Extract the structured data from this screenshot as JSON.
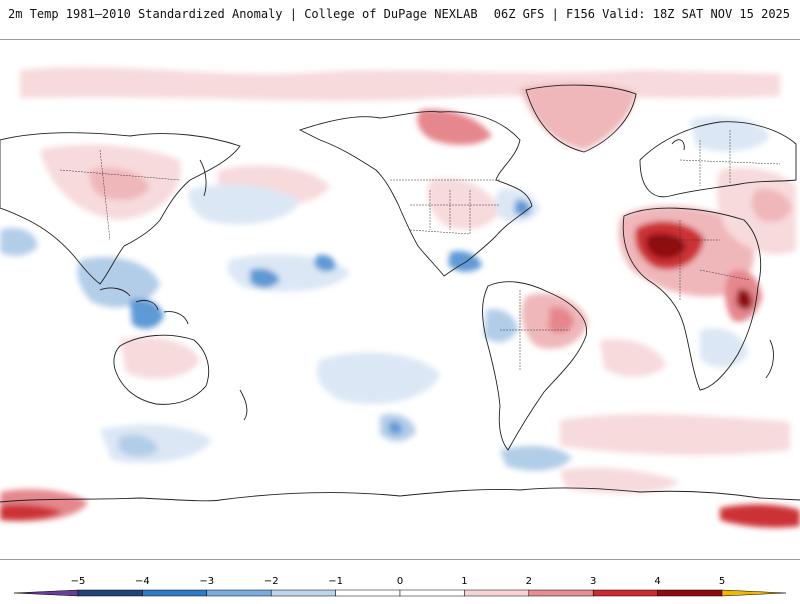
{
  "header": {
    "title_left": "2m Temp 1981–2010 Standardized Anomaly | College of DuPage NEXLAB",
    "title_right": "06Z GFS | F156 Valid: 18Z SAT NOV 15 2025"
  },
  "map": {
    "description_name": "global-anomaly-map",
    "colors": {
      "warm_1": "#f7dadc",
      "warm_2": "#efb7ba",
      "warm_3": "#e5878c",
      "warm_4": "#cc3236",
      "warm_5": "#8e0b10",
      "cool_1": "#dbe7f4",
      "cool_2": "#b2cde8",
      "cool_3": "#5f9ad6",
      "cool_4": "#1f5fb0",
      "coast": "#222222",
      "border": "#333333"
    }
  },
  "colorbar": {
    "ticks": [
      "-5",
      "-4",
      "-3",
      "-2",
      "-1",
      "0",
      "1",
      "2",
      "3",
      "4",
      "5"
    ],
    "bins": [
      {
        "from": -6,
        "to": -5,
        "color": "#6a3d9a"
      },
      {
        "from": -5,
        "to": -4,
        "color": "#22437a"
      },
      {
        "from": -4,
        "to": -3,
        "color": "#2e7cc6"
      },
      {
        "from": -3,
        "to": -2,
        "color": "#78ace0"
      },
      {
        "from": -2,
        "to": -1,
        "color": "#bcd3ec"
      },
      {
        "from": -1,
        "to": 0,
        "color": "#ffffff"
      },
      {
        "from": 0,
        "to": 1,
        "color": "#ffffff"
      },
      {
        "from": 1,
        "to": 2,
        "color": "#f6d4d6"
      },
      {
        "from": 2,
        "to": 3,
        "color": "#e38e92"
      },
      {
        "from": 3,
        "to": 4,
        "color": "#cc2a2f"
      },
      {
        "from": 4,
        "to": 5,
        "color": "#8e0b10"
      },
      {
        "from": 5,
        "to": 6,
        "color": "#f0b800"
      }
    ]
  }
}
